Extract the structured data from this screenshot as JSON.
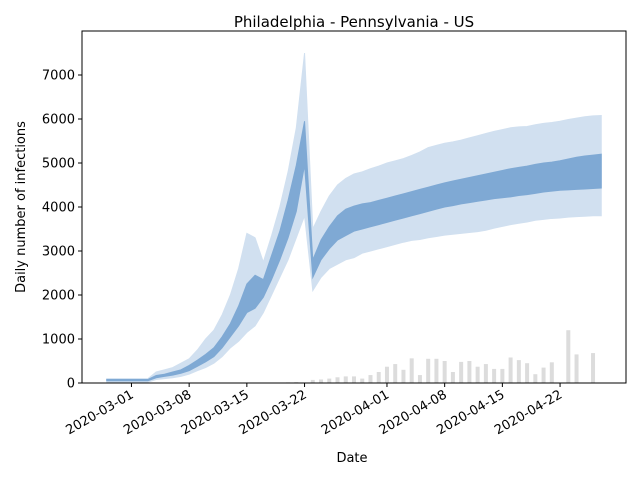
{
  "chart_data": {
    "type": "band",
    "title": "Philadelphia - Pennsylvania - US",
    "xlabel": "Date",
    "ylabel": "Daily number of infections",
    "x": [
      "2020-02-27",
      "2020-02-28",
      "2020-02-29",
      "2020-03-01",
      "2020-03-02",
      "2020-03-03",
      "2020-03-04",
      "2020-03-05",
      "2020-03-06",
      "2020-03-07",
      "2020-03-08",
      "2020-03-09",
      "2020-03-10",
      "2020-03-11",
      "2020-03-12",
      "2020-03-13",
      "2020-03-14",
      "2020-03-15",
      "2020-03-16",
      "2020-03-17",
      "2020-03-18",
      "2020-03-19",
      "2020-03-20",
      "2020-03-21",
      "2020-03-22",
      "2020-03-23",
      "2020-03-24",
      "2020-03-25",
      "2020-03-26",
      "2020-03-27",
      "2020-03-28",
      "2020-03-29",
      "2020-03-30",
      "2020-03-31",
      "2020-04-01",
      "2020-04-02",
      "2020-04-03",
      "2020-04-04",
      "2020-04-05",
      "2020-04-06",
      "2020-04-07",
      "2020-04-08",
      "2020-04-09",
      "2020-04-10",
      "2020-04-11",
      "2020-04-12",
      "2020-04-13",
      "2020-04-14",
      "2020-04-15",
      "2020-04-16",
      "2020-04-17",
      "2020-04-18",
      "2020-04-19",
      "2020-04-20",
      "2020-04-21",
      "2020-04-22",
      "2020-04-23",
      "2020-04-24",
      "2020-04-25",
      "2020-04-26",
      "2020-04-27"
    ],
    "bands": [
      {
        "color": "#d1e0f0",
        "lower": [
          20,
          20,
          20,
          20,
          20,
          20,
          80,
          100,
          120,
          150,
          200,
          280,
          350,
          450,
          600,
          800,
          950,
          1150,
          1300,
          1600,
          2000,
          2400,
          2800,
          3300,
          3800,
          2100,
          2400,
          2600,
          2700,
          2800,
          2850,
          2950,
          3000,
          3050,
          3100,
          3150,
          3200,
          3240,
          3260,
          3300,
          3330,
          3360,
          3380,
          3400,
          3420,
          3440,
          3470,
          3520,
          3560,
          3600,
          3630,
          3660,
          3700,
          3720,
          3740,
          3750,
          3770,
          3780,
          3790,
          3800,
          3800
        ],
        "upper": [
          100,
          100,
          100,
          100,
          100,
          100,
          250,
          300,
          350,
          450,
          550,
          750,
          1000,
          1200,
          1550,
          2000,
          2600,
          3400,
          3300,
          2750,
          3350,
          4000,
          4800,
          5800,
          7500,
          3500,
          3900,
          4250,
          4500,
          4650,
          4750,
          4800,
          4870,
          4930,
          5000,
          5050,
          5100,
          5170,
          5250,
          5350,
          5400,
          5450,
          5480,
          5520,
          5570,
          5620,
          5670,
          5720,
          5760,
          5800,
          5820,
          5830,
          5870,
          5900,
          5920,
          5950,
          5990,
          6020,
          6050,
          6070,
          6080
        ]
      },
      {
        "color": "#7fa9d4",
        "lower": [
          50,
          50,
          50,
          50,
          50,
          50,
          120,
          150,
          180,
          220,
          280,
          380,
          480,
          600,
          800,
          1050,
          1300,
          1600,
          1700,
          1950,
          2350,
          2800,
          3300,
          3900,
          4950,
          2400,
          2800,
          3050,
          3250,
          3350,
          3450,
          3500,
          3550,
          3600,
          3650,
          3700,
          3750,
          3800,
          3850,
          3900,
          3950,
          4000,
          4030,
          4070,
          4100,
          4130,
          4160,
          4190,
          4210,
          4230,
          4260,
          4280,
          4310,
          4340,
          4360,
          4380,
          4390,
          4400,
          4410,
          4420,
          4430
        ],
        "upper": [
          80,
          80,
          80,
          80,
          80,
          80,
          170,
          200,
          250,
          300,
          400,
          520,
          650,
          800,
          1050,
          1350,
          1750,
          2250,
          2450,
          2350,
          2900,
          3450,
          4150,
          4950,
          5950,
          2800,
          3250,
          3550,
          3800,
          3950,
          4020,
          4070,
          4100,
          4150,
          4200,
          4250,
          4300,
          4350,
          4400,
          4450,
          4500,
          4550,
          4590,
          4630,
          4670,
          4710,
          4750,
          4790,
          4830,
          4870,
          4900,
          4930,
          4970,
          5000,
          5020,
          5050,
          5090,
          5130,
          5160,
          5180,
          5200
        ]
      }
    ],
    "bars": {
      "color": "#dcdcdc",
      "values": [
        0,
        0,
        0,
        0,
        0,
        0,
        0,
        0,
        0,
        0,
        0,
        0,
        0,
        0,
        0,
        0,
        0,
        0,
        0,
        0,
        0,
        0,
        15,
        20,
        0,
        70,
        80,
        100,
        130,
        150,
        150,
        100,
        180,
        250,
        370,
        430,
        300,
        560,
        180,
        550,
        550,
        500,
        250,
        480,
        500,
        370,
        430,
        320,
        320,
        580,
        520,
        450,
        200,
        350,
        470,
        0,
        1200,
        650,
        0,
        680,
        0
      ]
    },
    "xlim": [
      "2020-02-24",
      "2020-04-30"
    ],
    "xticks": [
      "2020-03-01",
      "2020-03-08",
      "2020-03-15",
      "2020-03-22",
      "2020-04-01",
      "2020-04-08",
      "2020-04-15",
      "2020-04-22"
    ],
    "ylim": [
      0,
      8000
    ],
    "yticks": [
      0,
      1000,
      2000,
      3000,
      4000,
      5000,
      6000,
      7000
    ]
  }
}
